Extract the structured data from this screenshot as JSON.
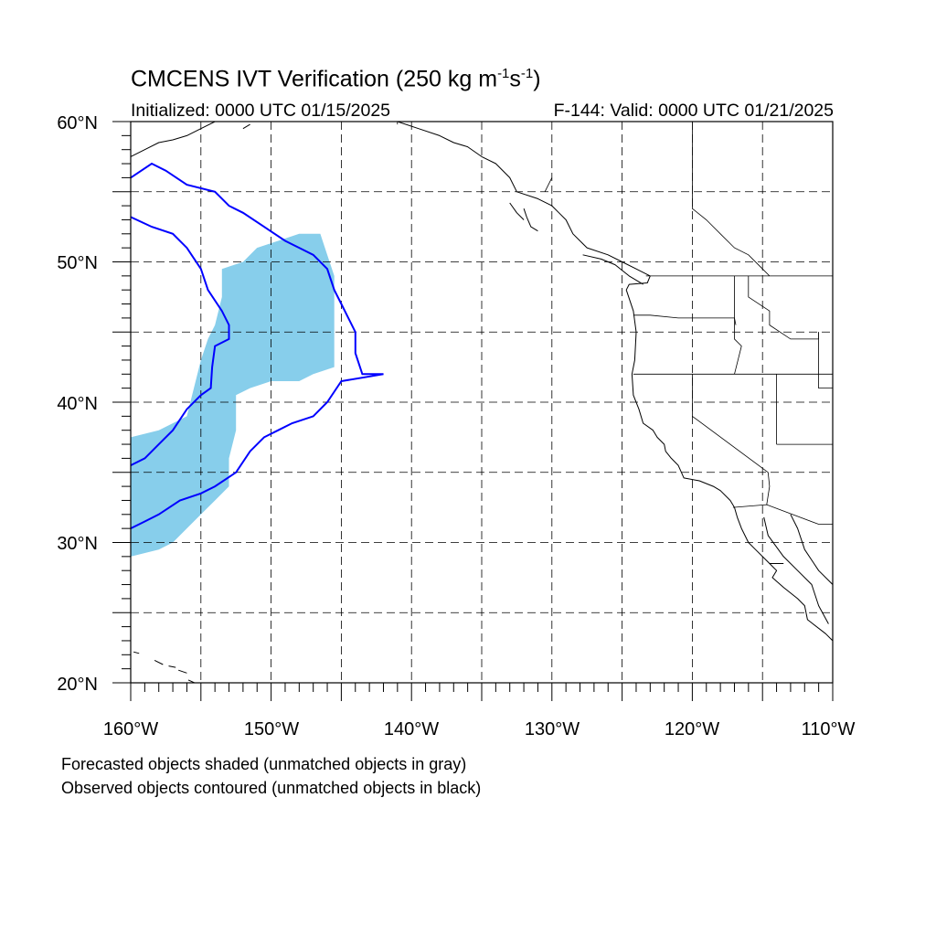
{
  "title": {
    "prefix": "CMCENS IVT Verification (250 kg m",
    "exp1": "-1",
    "mid": "s",
    "exp2": "-1",
    "suffix": ")"
  },
  "initialized": "Initialized: 0000 UTC 01/15/2025",
  "valid": "F-144: Valid: 0000 UTC 01/21/2025",
  "lat_labels": [
    "60°N",
    "50°N",
    "40°N",
    "30°N",
    "20°N"
  ],
  "lon_labels": [
    "160°W",
    "150°W",
    "140°W",
    "130°W",
    "120°W",
    "110°W"
  ],
  "captions": [
    "Forecasted objects shaded (unmatched objects in gray)",
    "Observed objects contoured (unmatched objects in black)"
  ],
  "colors": {
    "forecast_fill": "#87ceeb",
    "observed_contour": "#0000ff",
    "coastline": "#000000",
    "grid": "#000000"
  },
  "map": {
    "lon_range": [
      -160,
      -110
    ],
    "lat_range": [
      20,
      60
    ],
    "grid_lon_step": 5,
    "grid_lat_step": 5
  },
  "forecast_object": {
    "outline": [
      [
        -158,
        29.5
      ],
      [
        -160,
        29
      ],
      [
        -160,
        37.5
      ],
      [
        -158,
        38
      ],
      [
        -156,
        39
      ],
      [
        -155.5,
        41
      ],
      [
        -155,
        43
      ],
      [
        -154.5,
        44.5
      ],
      [
        -154,
        45.5
      ],
      [
        -153.5,
        47.5
      ],
      [
        -153.5,
        49.5
      ],
      [
        -152,
        50
      ],
      [
        -151,
        51
      ],
      [
        -149.5,
        51.5
      ],
      [
        -148,
        52
      ],
      [
        -146.5,
        52
      ],
      [
        -146,
        50.5
      ],
      [
        -145.5,
        49
      ],
      [
        -145.5,
        46
      ],
      [
        -145.5,
        44
      ],
      [
        -145.5,
        42.5
      ],
      [
        -147,
        42
      ],
      [
        -148,
        41.5
      ],
      [
        -150,
        41.5
      ],
      [
        -151.5,
        41
      ],
      [
        -152.5,
        40.5
      ],
      [
        -152.5,
        38
      ],
      [
        -153,
        36
      ],
      [
        -153,
        34
      ],
      [
        -154,
        33
      ],
      [
        -155,
        32
      ],
      [
        -156,
        31
      ],
      [
        -157,
        30
      ]
    ]
  },
  "observed_objects": [
    {
      "outline": [
        [
          -160,
          56
        ],
        [
          -158.5,
          57
        ],
        [
          -157.5,
          56.5
        ],
        [
          -156,
          55.5
        ],
        [
          -154,
          55
        ],
        [
          -153,
          54
        ],
        [
          -152,
          53.5
        ],
        [
          -150.5,
          52.5
        ],
        [
          -149,
          51.5
        ],
        [
          -148,
          51
        ],
        [
          -147,
          50.5
        ],
        [
          -146,
          49.5
        ],
        [
          -145.5,
          48
        ],
        [
          -145,
          47
        ],
        [
          -144.5,
          46
        ],
        [
          -144,
          45
        ],
        [
          -144,
          43.5
        ],
        [
          -143.5,
          42
        ],
        [
          -142,
          42
        ],
        [
          -145,
          41.5
        ],
        [
          -146,
          40
        ],
        [
          -147,
          39
        ],
        [
          -148.5,
          38.5
        ],
        [
          -149.5,
          38
        ],
        [
          -150.5,
          37.5
        ],
        [
          -151.5,
          36.5
        ],
        [
          -152.5,
          35
        ],
        [
          -154,
          34
        ],
        [
          -155,
          33.5
        ],
        [
          -156.5,
          33
        ],
        [
          -158,
          32
        ],
        [
          -159,
          31.5
        ],
        [
          -160,
          31
        ]
      ]
    },
    {
      "outline": [
        [
          -160,
          53.2
        ],
        [
          -158.5,
          52.5
        ],
        [
          -157,
          52
        ],
        [
          -156,
          51
        ],
        [
          -155,
          49.5
        ],
        [
          -154.5,
          48
        ],
        [
          -153.5,
          46.5
        ],
        [
          -153,
          45.5
        ],
        [
          -153,
          44.5
        ],
        [
          -154,
          44
        ],
        [
          -154.2,
          42.5
        ],
        [
          -154.3,
          41
        ],
        [
          -155,
          40.5
        ],
        [
          -156,
          39.5
        ],
        [
          -157,
          38
        ],
        [
          -158,
          37
        ],
        [
          -159,
          36
        ],
        [
          -160,
          35.5
        ]
      ]
    }
  ],
  "coastlines": [
    [
      [
        -160,
        57.5
      ],
      [
        -159,
        58
      ],
      [
        -158,
        58.5
      ],
      [
        -157,
        58.7
      ],
      [
        -156,
        59
      ],
      [
        -155,
        59.5
      ],
      [
        -154,
        60
      ]
    ],
    [
      [
        -152,
        59.5
      ],
      [
        -151.5,
        59.8
      ]
    ],
    [
      [
        -141,
        60
      ],
      [
        -139.5,
        59.5
      ],
      [
        -138,
        59
      ],
      [
        -137,
        58.5
      ],
      [
        -136,
        58.2
      ],
      [
        -135,
        57.5
      ],
      [
        -134,
        57
      ],
      [
        -133,
        56
      ],
      [
        -132.5,
        55
      ],
      [
        -131,
        54.5
      ],
      [
        -130,
        54
      ],
      [
        -129.5,
        53.5
      ],
      [
        -129,
        53
      ],
      [
        -128.5,
        52
      ],
      [
        -128,
        51.5
      ],
      [
        -127.5,
        51
      ],
      [
        -126,
        50.5
      ],
      [
        -125,
        50
      ],
      [
        -124,
        49.5
      ],
      [
        -123,
        49
      ],
      [
        -123.2,
        48.5
      ],
      [
        -124.5,
        48.4
      ],
      [
        -124.7,
        48
      ],
      [
        -124.2,
        46.5
      ],
      [
        -124,
        45
      ],
      [
        -124.1,
        43
      ],
      [
        -124.3,
        42
      ],
      [
        -124.2,
        40.5
      ],
      [
        -123.8,
        39.5
      ],
      [
        -123.5,
        38.5
      ],
      [
        -122.8,
        38
      ],
      [
        -122.5,
        37.5
      ],
      [
        -122,
        37
      ],
      [
        -121.9,
        36.5
      ],
      [
        -121.5,
        36
      ],
      [
        -121,
        35.5
      ],
      [
        -120.6,
        34.6
      ],
      [
        -119.5,
        34.4
      ],
      [
        -118.5,
        34
      ],
      [
        -118,
        33.7
      ],
      [
        -117.3,
        33
      ],
      [
        -117,
        32.5
      ],
      [
        -116.8,
        31.8
      ],
      [
        -116.5,
        31
      ],
      [
        -116,
        30
      ],
      [
        -115.5,
        29.5
      ],
      [
        -114.5,
        28.5
      ],
      [
        -114,
        28
      ],
      [
        -114.3,
        27.5
      ],
      [
        -113.5,
        26.8
      ],
      [
        -112.5,
        26
      ],
      [
        -112,
        25.5
      ],
      [
        -111.8,
        24.5
      ],
      [
        -110.5,
        23.5
      ],
      [
        -110,
        23
      ]
    ],
    [
      [
        -114.9,
        31.8
      ],
      [
        -114.6,
        30.5
      ],
      [
        -113.5,
        29
      ],
      [
        -112.5,
        28
      ],
      [
        -111.5,
        27
      ],
      [
        -111,
        25.5
      ],
      [
        -110.3,
        24.2
      ]
    ],
    [
      [
        -113,
        32
      ],
      [
        -112.5,
        31
      ],
      [
        -112,
        29.5
      ],
      [
        -111,
        28
      ],
      [
        -110,
        27
      ]
    ],
    [
      [
        -114.5,
        28.5
      ],
      [
        -113.5,
        28.5
      ]
    ],
    [
      [
        -127.8,
        50.5
      ],
      [
        -126.5,
        50.2
      ],
      [
        -125.5,
        49.8
      ],
      [
        -124.5,
        49
      ],
      [
        -123.5,
        48.4
      ]
    ],
    [
      [
        -132,
        53.8
      ],
      [
        -131.8,
        53.2
      ],
      [
        -131.5,
        52.5
      ],
      [
        -131,
        52.2
      ]
    ],
    [
      [
        -133,
        54.2
      ],
      [
        -132.5,
        53.5
      ],
      [
        -132,
        53
      ]
    ],
    [
      [
        -159.8,
        22.2
      ],
      [
        -159.4,
        22.1
      ]
    ],
    [
      [
        -158.3,
        21.6
      ],
      [
        -157.7,
        21.3
      ]
    ],
    [
      [
        -157.3,
        21.2
      ],
      [
        -156.8,
        21.1
      ]
    ],
    [
      [
        -156.6,
        20.9
      ],
      [
        -156,
        20.7
      ]
    ],
    [
      [
        -155.9,
        20.2
      ],
      [
        -155,
        19.8
      ]
    ]
  ],
  "borders": [
    [
      [
        -123.3,
        49
      ],
      [
        -110,
        49
      ]
    ],
    [
      [
        -124.2,
        46.2
      ],
      [
        -123,
        46.2
      ],
      [
        -121,
        46
      ],
      [
        -119,
        46
      ],
      [
        -117,
        46
      ],
      [
        -116.9,
        45.5
      ]
    ],
    [
      [
        -117,
        49
      ],
      [
        -117,
        44.5
      ],
      [
        -116.5,
        44
      ],
      [
        -117,
        42
      ]
    ],
    [
      [
        -124.2,
        42
      ],
      [
        -110,
        42
      ]
    ],
    [
      [
        -120,
        42
      ],
      [
        -120,
        39
      ],
      [
        -114.6,
        35
      ],
      [
        -114.5,
        34
      ],
      [
        -114.7,
        32.7
      ]
    ],
    [
      [
        -114,
        42
      ],
      [
        -114,
        37
      ]
    ],
    [
      [
        -114,
        37
      ],
      [
        -110,
        37
      ]
    ],
    [
      [
        -117.1,
        32.5
      ],
      [
        -114.7,
        32.7
      ],
      [
        -111,
        31.3
      ],
      [
        -110,
        31.3
      ]
    ],
    [
      [
        -116,
        49
      ],
      [
        -116,
        47.5
      ],
      [
        -114.5,
        46.5
      ],
      [
        -114.5,
        45.5
      ],
      [
        -113,
        44.5
      ],
      [
        -111,
        44.5
      ],
      [
        -111,
        45
      ]
    ],
    [
      [
        -111,
        45
      ],
      [
        -111,
        41
      ],
      [
        -110,
        41
      ]
    ],
    [
      [
        -141,
        60
      ],
      [
        -141,
        59.8
      ]
    ],
    [
      [
        -130,
        56
      ],
      [
        -130.5,
        55
      ]
    ],
    [
      [
        -120,
        60
      ],
      [
        -120,
        53.8
      ],
      [
        -119,
        53
      ],
      [
        -118,
        52
      ],
      [
        -117,
        51
      ],
      [
        -116,
        50.5
      ],
      [
        -115,
        49.5
      ],
      [
        -114.5,
        49
      ]
    ]
  ]
}
